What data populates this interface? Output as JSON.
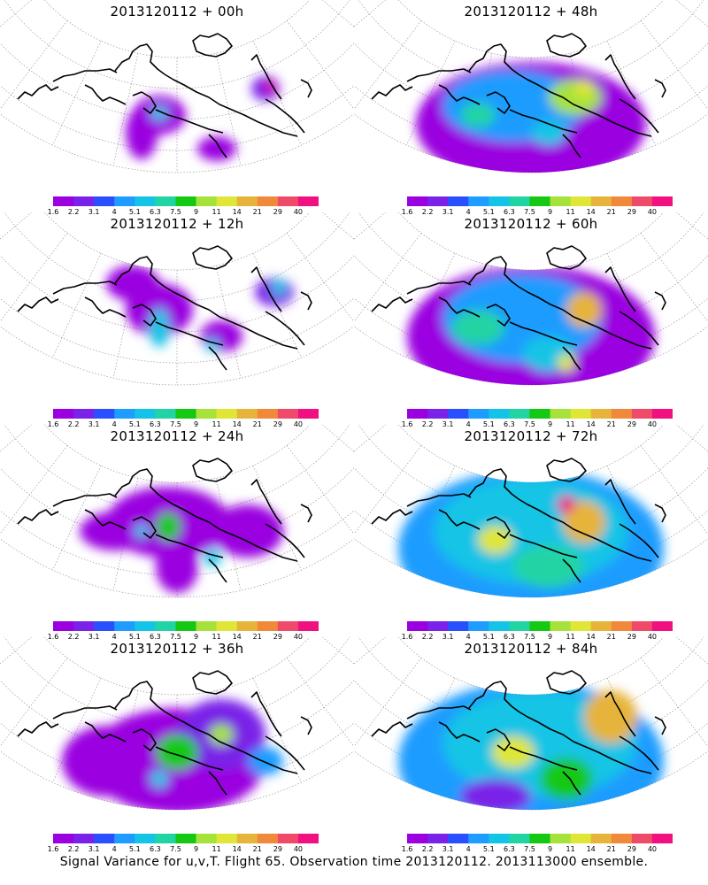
{
  "figure": {
    "caption": "Signal Variance for u,v,T. Flight 65. Observation time 2013120112. 2013113000 ensemble.",
    "colorbar": {
      "labels": [
        "1.6",
        "2.2",
        "3.1",
        "4",
        "5.1",
        "6.3",
        "7.5",
        "9",
        "11",
        "14",
        "21",
        "29",
        "40"
      ],
      "colors": [
        "#9a00e0",
        "#7a22e8",
        "#2850ff",
        "#1e9cff",
        "#14c4e6",
        "#22d4a4",
        "#14c814",
        "#a6e23a",
        "#e0e636",
        "#e6b43a",
        "#f08a3a",
        "#f04a6a",
        "#f01080"
      ]
    },
    "panels": [
      {
        "title": "2013120112 + 00h",
        "lead_hours": 0
      },
      {
        "title": "2013120112 + 48h",
        "lead_hours": 48
      },
      {
        "title": "2013120112 + 12h",
        "lead_hours": 12
      },
      {
        "title": "2013120112 + 60h",
        "lead_hours": 60
      },
      {
        "title": "2013120112 + 24h",
        "lead_hours": 24
      },
      {
        "title": "2013120112 + 72h",
        "lead_hours": 72
      },
      {
        "title": "2013120112 + 36h",
        "lead_hours": 36
      },
      {
        "title": "2013120112 + 84h",
        "lead_hours": 84
      }
    ]
  }
}
